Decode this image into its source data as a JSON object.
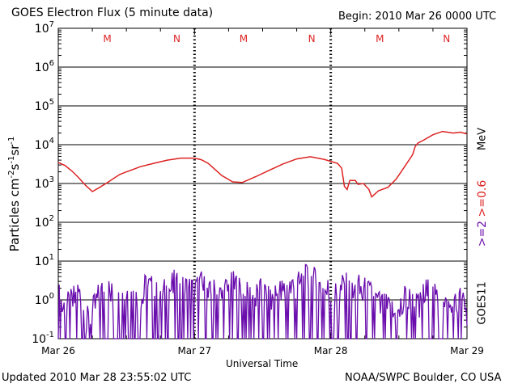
{
  "header": {
    "title": "GOES Electron Flux (5 minute data)",
    "begin": "Begin: 2010 Mar 26 0000 UTC"
  },
  "footer": {
    "updated": "Updated 2010 Mar 28 23:55:02 UTC",
    "credit": "NOAA/SWPC Boulder, CO USA"
  },
  "colors": {
    "high_energy": "#6a0dad",
    "low_energy": "#dd2222",
    "grid": "#000000"
  },
  "chart_data": {
    "type": "line",
    "xlabel": "Universal Time",
    "ylabel": {
      "text": "Particles cm",
      "exp1": "-2",
      "mid1": "s",
      "exp2": "-1",
      "mid2": "sr",
      "exp3": "-1"
    },
    "unit": "MeV",
    "energy_label": {
      "high": ">=2",
      "low": ">=0.6"
    },
    "satellite": "GOES11",
    "x_range_days": [
      0,
      3
    ],
    "x_ticks": [
      "Mar 26",
      "Mar 27",
      "Mar 28",
      "Mar 29"
    ],
    "y_scale": "log",
    "y_range": [
      0.1,
      10000000
    ],
    "y_ticks": [
      {
        "base": "10",
        "exp": "-1"
      },
      {
        "base": "10",
        "exp": "0"
      },
      {
        "base": "10",
        "exp": "1"
      },
      {
        "base": "10",
        "exp": "2"
      },
      {
        "base": "10",
        "exp": "3"
      },
      {
        "base": "10",
        "exp": "4"
      },
      {
        "base": "10",
        "exp": "5"
      },
      {
        "base": "10",
        "exp": "6"
      },
      {
        "base": "10",
        "exp": "7"
      }
    ],
    "threshold": 1000,
    "markers": [
      {
        "label": "M",
        "day": 0.36
      },
      {
        "label": "N",
        "day": 0.87
      },
      {
        "label": "M",
        "day": 1.36
      },
      {
        "label": "N",
        "day": 1.86
      },
      {
        "label": "M",
        "day": 2.36
      },
      {
        "label": "N",
        "day": 2.85
      }
    ],
    "series": [
      {
        "name": ">=0.6",
        "color": "#dd2222",
        "points": [
          [
            0.0,
            3500
          ],
          [
            0.05,
            2900
          ],
          [
            0.1,
            2100
          ],
          [
            0.15,
            1400
          ],
          [
            0.2,
            900
          ],
          [
            0.25,
            620
          ],
          [
            0.3,
            780
          ],
          [
            0.35,
            1000
          ],
          [
            0.4,
            1300
          ],
          [
            0.45,
            1700
          ],
          [
            0.5,
            2000
          ],
          [
            0.55,
            2300
          ],
          [
            0.6,
            2700
          ],
          [
            0.7,
            3300
          ],
          [
            0.8,
            4000
          ],
          [
            0.9,
            4500
          ],
          [
            1.0,
            4500
          ],
          [
            1.05,
            4100
          ],
          [
            1.1,
            3300
          ],
          [
            1.15,
            2300
          ],
          [
            1.2,
            1600
          ],
          [
            1.28,
            1100
          ],
          [
            1.35,
            1060
          ],
          [
            1.45,
            1500
          ],
          [
            1.55,
            2200
          ],
          [
            1.65,
            3200
          ],
          [
            1.75,
            4300
          ],
          [
            1.85,
            4900
          ],
          [
            1.95,
            4200
          ],
          [
            2.05,
            3300
          ],
          [
            2.08,
            2500
          ],
          [
            2.1,
            850
          ],
          [
            2.12,
            700
          ],
          [
            2.14,
            1200
          ],
          [
            2.18,
            1200
          ],
          [
            2.2,
            950
          ],
          [
            2.24,
            1000
          ],
          [
            2.28,
            700
          ],
          [
            2.3,
            450
          ],
          [
            2.35,
            650
          ],
          [
            2.42,
            800
          ],
          [
            2.48,
            1300
          ],
          [
            2.55,
            3000
          ],
          [
            2.6,
            5500
          ],
          [
            2.62,
            9000
          ],
          [
            2.64,
            11000
          ],
          [
            2.68,
            13000
          ],
          [
            2.75,
            18000
          ],
          [
            2.82,
            22000
          ],
          [
            2.9,
            20000
          ],
          [
            2.95,
            21000
          ],
          [
            3.0,
            19000
          ]
        ]
      },
      {
        "name": ">=2",
        "color": "#6a0dad",
        "floor": 0.1,
        "peaks": [
          [
            0.0,
            3
          ],
          [
            0.05,
            1.5
          ],
          [
            0.1,
            2
          ],
          [
            0.15,
            4
          ],
          [
            0.2,
            0.6
          ],
          [
            0.25,
            1
          ],
          [
            0.3,
            3
          ],
          [
            0.35,
            5
          ],
          [
            0.4,
            3
          ],
          [
            0.45,
            2
          ],
          [
            0.5,
            5
          ],
          [
            0.55,
            3
          ],
          [
            0.6,
            2
          ],
          [
            0.65,
            6
          ],
          [
            0.7,
            4
          ],
          [
            0.75,
            2
          ],
          [
            0.8,
            5
          ],
          [
            0.85,
            6
          ],
          [
            0.9,
            4
          ],
          [
            0.95,
            5
          ],
          [
            1.0,
            4
          ],
          [
            1.05,
            6
          ],
          [
            1.1,
            3
          ],
          [
            1.15,
            4
          ],
          [
            1.2,
            3
          ],
          [
            1.25,
            5
          ],
          [
            1.3,
            6
          ],
          [
            1.35,
            3
          ],
          [
            1.4,
            3
          ],
          [
            1.45,
            3
          ],
          [
            1.5,
            4
          ],
          [
            1.55,
            2
          ],
          [
            1.6,
            4
          ],
          [
            1.65,
            4
          ],
          [
            1.7,
            6
          ],
          [
            1.75,
            5
          ],
          [
            1.8,
            8
          ],
          [
            1.85,
            9
          ],
          [
            1.9,
            6
          ],
          [
            1.95,
            5
          ],
          [
            2.0,
            4
          ],
          [
            2.05,
            3
          ],
          [
            2.1,
            6
          ],
          [
            2.15,
            3
          ],
          [
            2.2,
            5
          ],
          [
            2.25,
            4
          ],
          [
            2.3,
            3
          ],
          [
            2.35,
            2
          ],
          [
            2.4,
            1.5
          ],
          [
            2.45,
            1.2
          ],
          [
            2.5,
            1
          ],
          [
            2.55,
            3
          ],
          [
            2.6,
            2
          ],
          [
            2.65,
            1.5
          ],
          [
            2.7,
            4
          ],
          [
            2.75,
            3
          ],
          [
            2.8,
            2
          ],
          [
            2.85,
            1.5
          ],
          [
            2.9,
            1.5
          ],
          [
            2.95,
            2.5
          ],
          [
            3.0,
            1
          ]
        ]
      }
    ]
  }
}
